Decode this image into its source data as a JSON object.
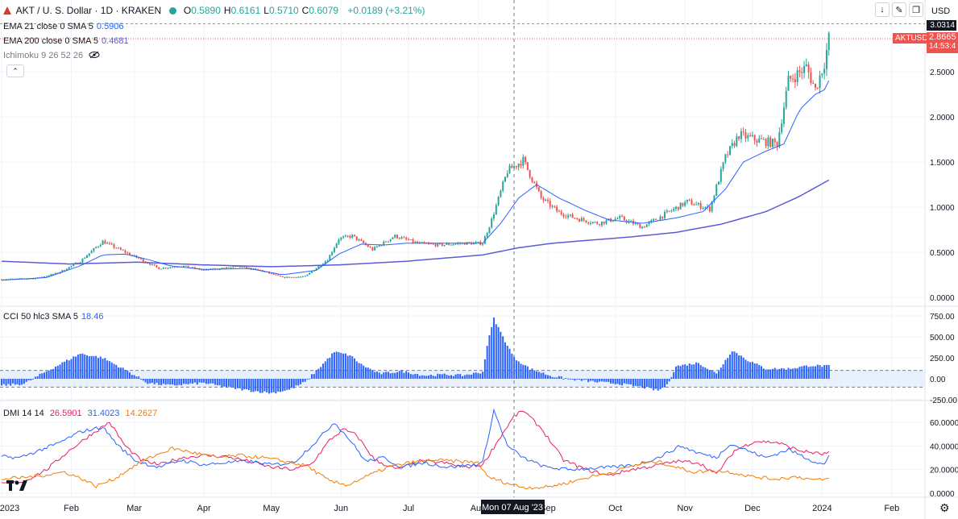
{
  "header": {
    "symbol_title": "AKT / U. S. Dollar · 1D · KRAKEN",
    "ohlc": [
      {
        "k": "O",
        "v": "0.5890"
      },
      {
        "k": "H",
        "v": "0.6161"
      },
      {
        "k": "L",
        "v": "0.5710"
      },
      {
        "k": "C",
        "v": "0.6079"
      }
    ],
    "change": "+0.0189 (+3.21%)",
    "currency": "USD",
    "colors": {
      "up": "#26a69a",
      "down": "#ef5350",
      "text": "#131722"
    }
  },
  "indicators": {
    "ema21": {
      "label": "EMA 21 close 0 SMA 5",
      "value": "0.5906",
      "color": "#2962ff"
    },
    "ema200": {
      "label": "EMA 200 close 0 SMA 5",
      "value": "0.4681",
      "color": "#5b5bd6"
    },
    "ichimoku": {
      "label": "Ichimoku 9 26 52 26",
      "icon": "eye-hidden-icon"
    },
    "cci": {
      "label": "CCI 50 hlc3 SMA 5",
      "value": "18.46",
      "color": "#2962ff"
    },
    "dmi": {
      "label": "DMI 14 14",
      "values": [
        {
          "v": "26.5901",
          "color": "#e91e63"
        },
        {
          "v": "31.4023",
          "color": "#2962ff"
        },
        {
          "v": "14.2627",
          "color": "#f57c00"
        }
      ]
    }
  },
  "price_labels": {
    "top": "3.0314",
    "symbol": "AKTUSD",
    "last": "2.8665",
    "countdown": "14:53:4"
  },
  "crosshair": {
    "date_label": "Mon 07 Aug '23"
  },
  "toolbar_icons": [
    "arrow-down-icon",
    "edit-icon",
    "restore-icon"
  ],
  "bottom_icons": [
    "tradingview-logo",
    "settings-icon"
  ],
  "chart_data": [
    {
      "type": "candlestick",
      "title": "AKT / U. S. Dollar · 1D · KRAKEN",
      "y_ticks": [
        "3.0000",
        "2.5000",
        "2.0000",
        "1.5000",
        "1.0000",
        "0.5000",
        "0.0000"
      ],
      "ylim": [
        0,
        3.0
      ],
      "x_ticks": [
        {
          "label": "2023",
          "t": 0
        },
        {
          "label": "Feb",
          "t": 31
        },
        {
          "label": "Mar",
          "t": 59
        },
        {
          "label": "Apr",
          "t": 90
        },
        {
          "label": "May",
          "t": 120
        },
        {
          "label": "Jun",
          "t": 151
        },
        {
          "label": "Jul",
          "t": 181
        },
        {
          "label": "Aug",
          "t": 212
        },
        {
          "label": "Sep",
          "t": 243
        },
        {
          "label": "Oct",
          "t": 273
        },
        {
          "label": "Nov",
          "t": 304
        },
        {
          "label": "Dec",
          "t": 334
        },
        {
          "label": "2024",
          "t": 365
        },
        {
          "label": "Feb",
          "t": 396
        }
      ],
      "close_path": [
        [
          0,
          0.2
        ],
        [
          15,
          0.21
        ],
        [
          25,
          0.27
        ],
        [
          35,
          0.4
        ],
        [
          45,
          0.62
        ],
        [
          55,
          0.5
        ],
        [
          62,
          0.42
        ],
        [
          70,
          0.32
        ],
        [
          80,
          0.35
        ],
        [
          90,
          0.3
        ],
        [
          105,
          0.34
        ],
        [
          115,
          0.3
        ],
        [
          125,
          0.22
        ],
        [
          135,
          0.23
        ],
        [
          145,
          0.42
        ],
        [
          150,
          0.65
        ],
        [
          156,
          0.68
        ],
        [
          165,
          0.53
        ],
        [
          175,
          0.68
        ],
        [
          185,
          0.6
        ],
        [
          195,
          0.58
        ],
        [
          205,
          0.6
        ],
        [
          214,
          0.6
        ],
        [
          218,
          0.86
        ],
        [
          225,
          1.4
        ],
        [
          232,
          1.52
        ],
        [
          240,
          1.1
        ],
        [
          248,
          0.94
        ],
        [
          255,
          0.88
        ],
        [
          265,
          0.82
        ],
        [
          275,
          0.88
        ],
        [
          285,
          0.78
        ],
        [
          295,
          0.92
        ],
        [
          305,
          1.06
        ],
        [
          315,
          0.98
        ],
        [
          322,
          1.55
        ],
        [
          328,
          1.8
        ],
        [
          335,
          1.75
        ],
        [
          345,
          1.7
        ],
        [
          350,
          2.4
        ],
        [
          358,
          2.55
        ],
        [
          362,
          2.3
        ],
        [
          366,
          2.6
        ],
        [
          368,
          2.87
        ]
      ],
      "ema21_path": [
        [
          0,
          0.19
        ],
        [
          20,
          0.22
        ],
        [
          35,
          0.35
        ],
        [
          45,
          0.47
        ],
        [
          55,
          0.48
        ],
        [
          65,
          0.42
        ],
        [
          75,
          0.35
        ],
        [
          90,
          0.31
        ],
        [
          110,
          0.32
        ],
        [
          125,
          0.25
        ],
        [
          140,
          0.3
        ],
        [
          150,
          0.48
        ],
        [
          160,
          0.59
        ],
        [
          170,
          0.58
        ],
        [
          180,
          0.6
        ],
        [
          195,
          0.6
        ],
        [
          214,
          0.6
        ],
        [
          222,
          0.82
        ],
        [
          230,
          1.1
        ],
        [
          238,
          1.25
        ],
        [
          248,
          1.1
        ],
        [
          260,
          0.96
        ],
        [
          270,
          0.86
        ],
        [
          285,
          0.82
        ],
        [
          300,
          0.88
        ],
        [
          312,
          0.95
        ],
        [
          322,
          1.2
        ],
        [
          330,
          1.5
        ],
        [
          340,
          1.62
        ],
        [
          348,
          1.7
        ],
        [
          355,
          2.08
        ],
        [
          362,
          2.25
        ],
        [
          366,
          2.3
        ],
        [
          368,
          2.4
        ]
      ],
      "ema200_path": [
        [
          0,
          0.4
        ],
        [
          30,
          0.37
        ],
        [
          45,
          0.38
        ],
        [
          60,
          0.39
        ],
        [
          90,
          0.36
        ],
        [
          120,
          0.34
        ],
        [
          150,
          0.36
        ],
        [
          180,
          0.4
        ],
        [
          214,
          0.47
        ],
        [
          230,
          0.55
        ],
        [
          245,
          0.6
        ],
        [
          260,
          0.63
        ],
        [
          280,
          0.67
        ],
        [
          300,
          0.72
        ],
        [
          320,
          0.81
        ],
        [
          340,
          0.95
        ],
        [
          355,
          1.12
        ],
        [
          368,
          1.3
        ]
      ]
    },
    {
      "type": "bar",
      "title": "CCI 50 hlc3 SMA 5",
      "y_ticks": [
        "750.00",
        "500.00",
        "250.00",
        "0.00",
        "-250.00"
      ],
      "ylim": [
        -250,
        750
      ],
      "bands": [
        100,
        -100
      ],
      "values_path": [
        [
          0,
          -80
        ],
        [
          10,
          -60
        ],
        [
          18,
          60
        ],
        [
          25,
          160
        ],
        [
          35,
          300
        ],
        [
          45,
          250
        ],
        [
          52,
          150
        ],
        [
          58,
          60
        ],
        [
          65,
          -50
        ],
        [
          75,
          -80
        ],
        [
          90,
          -50
        ],
        [
          100,
          -100
        ],
        [
          110,
          -140
        ],
        [
          120,
          -170
        ],
        [
          128,
          -130
        ],
        [
          135,
          -40
        ],
        [
          142,
          150
        ],
        [
          148,
          320
        ],
        [
          155,
          280
        ],
        [
          160,
          170
        ],
        [
          168,
          60
        ],
        [
          178,
          90
        ],
        [
          188,
          40
        ],
        [
          198,
          50
        ],
        [
          205,
          40
        ],
        [
          214,
          80
        ],
        [
          216,
          400
        ],
        [
          219,
          720
        ],
        [
          223,
          500
        ],
        [
          228,
          250
        ],
        [
          235,
          120
        ],
        [
          245,
          30
        ],
        [
          255,
          -10
        ],
        [
          265,
          -40
        ],
        [
          275,
          -60
        ],
        [
          285,
          -100
        ],
        [
          292,
          -140
        ],
        [
          296,
          -80
        ],
        [
          300,
          150
        ],
        [
          310,
          190
        ],
        [
          318,
          60
        ],
        [
          325,
          340
        ],
        [
          332,
          220
        ],
        [
          340,
          120
        ],
        [
          350,
          120
        ],
        [
          360,
          160
        ],
        [
          368,
          150
        ]
      ]
    },
    {
      "type": "line",
      "title": "DMI 14 14",
      "y_ticks": [
        "60.0000",
        "40.0000",
        "20.0000",
        "0.0000"
      ],
      "ylim": [
        -1,
        75
      ],
      "series": [
        {
          "name": "26.5901",
          "color": "#e91e63",
          "path": [
            [
              0,
              8
            ],
            [
              10,
              10
            ],
            [
              20,
              20
            ],
            [
              30,
              36
            ],
            [
              40,
              50
            ],
            [
              48,
              60
            ],
            [
              55,
              40
            ],
            [
              62,
              28
            ],
            [
              70,
              24
            ],
            [
              80,
              30
            ],
            [
              90,
              32
            ],
            [
              100,
              31
            ],
            [
              110,
              27
            ],
            [
              120,
              22
            ],
            [
              130,
              20
            ],
            [
              138,
              25
            ],
            [
              146,
              45
            ],
            [
              152,
              54
            ],
            [
              158,
              49
            ],
            [
              166,
              28
            ],
            [
              176,
              20
            ],
            [
              186,
              27
            ],
            [
              196,
              26
            ],
            [
              206,
              22
            ],
            [
              214,
              24
            ],
            [
              222,
              48
            ],
            [
              228,
              65
            ],
            [
              232,
              70
            ],
            [
              240,
              55
            ],
            [
              250,
              28
            ],
            [
              260,
              20
            ],
            [
              270,
              15
            ],
            [
              280,
              20
            ],
            [
              290,
              23
            ],
            [
              300,
              27
            ],
            [
              310,
              26
            ],
            [
              318,
              16
            ],
            [
              326,
              36
            ],
            [
              335,
              44
            ],
            [
              345,
              43
            ],
            [
              355,
              36
            ],
            [
              365,
              33
            ],
            [
              368,
              34
            ]
          ]
        },
        {
          "name": "31.4023",
          "color": "#2962ff",
          "path": [
            [
              0,
              31
            ],
            [
              8,
              30
            ],
            [
              15,
              35
            ],
            [
              25,
              42
            ],
            [
              35,
              52
            ],
            [
              45,
              56
            ],
            [
              52,
              40
            ],
            [
              60,
              27
            ],
            [
              70,
              22
            ],
            [
              80,
              28
            ],
            [
              90,
              24
            ],
            [
              100,
              26
            ],
            [
              110,
              27
            ],
            [
              120,
              24
            ],
            [
              130,
              26
            ],
            [
              140,
              44
            ],
            [
              148,
              60
            ],
            [
              155,
              45
            ],
            [
              162,
              27
            ],
            [
              170,
              30
            ],
            [
              178,
              22
            ],
            [
              188,
              26
            ],
            [
              198,
              22
            ],
            [
              210,
              24
            ],
            [
              214,
              26
            ],
            [
              219,
              70
            ],
            [
              225,
              40
            ],
            [
              232,
              30
            ],
            [
              242,
              22
            ],
            [
              252,
              20
            ],
            [
              262,
              21
            ],
            [
              272,
              22
            ],
            [
              282,
              24
            ],
            [
              292,
              30
            ],
            [
              302,
              40
            ],
            [
              310,
              34
            ],
            [
              318,
              30
            ],
            [
              324,
              42
            ],
            [
              332,
              36
            ],
            [
              340,
              30
            ],
            [
              350,
              37
            ],
            [
              360,
              28
            ],
            [
              366,
              24
            ],
            [
              368,
              31
            ]
          ]
        },
        {
          "name": "14.2627",
          "color": "#f57c00",
          "path": [
            [
              0,
              12
            ],
            [
              8,
              13
            ],
            [
              18,
              15
            ],
            [
              28,
              18
            ],
            [
              36,
              12
            ],
            [
              42,
              6
            ],
            [
              50,
              12
            ],
            [
              58,
              22
            ],
            [
              66,
              30
            ],
            [
              76,
              38
            ],
            [
              86,
              34
            ],
            [
              96,
              30
            ],
            [
              106,
              32
            ],
            [
              116,
              30
            ],
            [
              126,
              27
            ],
            [
              136,
              23
            ],
            [
              146,
              10
            ],
            [
              154,
              7
            ],
            [
              162,
              14
            ],
            [
              172,
              22
            ],
            [
              182,
              26
            ],
            [
              192,
              28
            ],
            [
              202,
              27
            ],
            [
              212,
              26
            ],
            [
              216,
              14
            ],
            [
              224,
              9
            ],
            [
              232,
              5
            ],
            [
              242,
              5
            ],
            [
              252,
              9
            ],
            [
              262,
              14
            ],
            [
              272,
              18
            ],
            [
              282,
              24
            ],
            [
              292,
              27
            ],
            [
              300,
              22
            ],
            [
              308,
              18
            ],
            [
              316,
              19
            ],
            [
              324,
              18
            ],
            [
              334,
              14
            ],
            [
              344,
              12
            ],
            [
              354,
              14
            ],
            [
              362,
              11
            ],
            [
              368,
              12
            ]
          ]
        }
      ]
    }
  ]
}
